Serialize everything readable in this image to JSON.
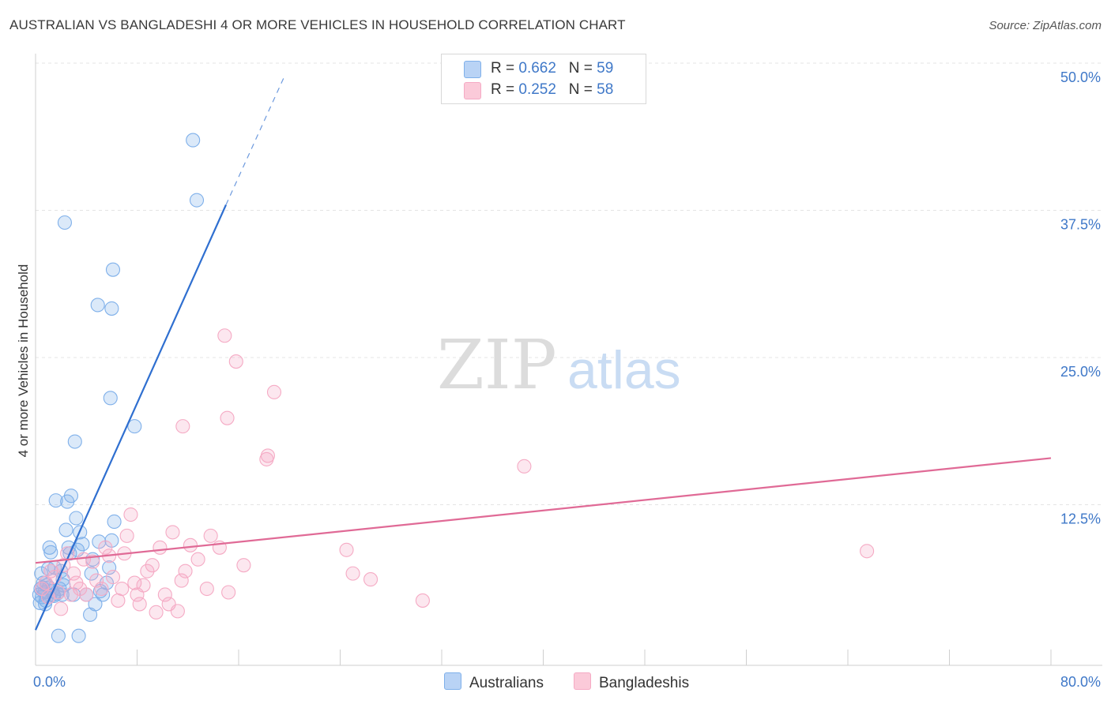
{
  "title": "AUSTRALIAN VS BANGLADESHI 4 OR MORE VEHICLES IN HOUSEHOLD CORRELATION CHART",
  "source": "Source: ZipAtlas.com",
  "watermark": {
    "zip": "ZIP",
    "atlas": "atlas"
  },
  "legend": {
    "rows": [
      {
        "r_label": "R = ",
        "r_value": "0.662",
        "n_label": "N = ",
        "n_value": "59"
      },
      {
        "r_label": "R = ",
        "r_value": "0.252",
        "n_label": "N = ",
        "n_value": "58"
      }
    ]
  },
  "chart_data": {
    "type": "scatter",
    "title": "AUSTRALIAN VS BANGLADESHI 4 OR MORE VEHICLES IN HOUSEHOLD CORRELATION CHART",
    "xlabel": "",
    "ylabel": "4 or more Vehicles in Household",
    "xlim": [
      0,
      80
    ],
    "ylim": [
      0,
      50
    ],
    "x_tick_labels": [
      "0.0%",
      "80.0%"
    ],
    "y_tick_values": [
      12.5,
      25.0,
      37.5,
      50.0
    ],
    "y_tick_labels": [
      "12.5%",
      "25.0%",
      "37.5%",
      "50.0%"
    ],
    "grid": true,
    "legend_position": "top-center",
    "series": [
      {
        "name": "Australians",
        "color": "#7fb0ea",
        "line_color": "#2f6fd0",
        "r": 0.662,
        "n": 59,
        "trend": {
          "x": [
            0.0,
            15.0
          ],
          "y": 3.0,
          "y_end": 39.1,
          "dashed_to": [
            19.6,
            50.0
          ]
        },
        "points": [
          [
            0.3,
            6.0
          ],
          [
            0.4,
            6.5
          ],
          [
            0.5,
            5.8
          ],
          [
            0.6,
            7.0
          ],
          [
            0.7,
            6.2
          ],
          [
            0.8,
            5.5
          ],
          [
            0.9,
            6.8
          ],
          [
            1.0,
            8.2
          ],
          [
            1.1,
            10.0
          ],
          [
            1.2,
            9.6
          ],
          [
            1.3,
            6.3
          ],
          [
            1.4,
            6.0
          ],
          [
            1.5,
            8.3
          ],
          [
            1.6,
            14.0
          ],
          [
            1.7,
            6.1
          ],
          [
            1.8,
            2.5
          ],
          [
            1.9,
            6.5
          ],
          [
            2.0,
            8.0
          ],
          [
            2.1,
            6.0
          ],
          [
            2.2,
            6.8
          ],
          [
            2.4,
            11.5
          ],
          [
            2.5,
            13.9
          ],
          [
            2.6,
            10.0
          ],
          [
            2.7,
            9.5
          ],
          [
            2.8,
            14.4
          ],
          [
            3.0,
            6.0
          ],
          [
            3.1,
            19.0
          ],
          [
            3.2,
            12.5
          ],
          [
            3.3,
            9.8
          ],
          [
            3.4,
            2.5
          ],
          [
            3.5,
            11.3
          ],
          [
            3.7,
            10.3
          ],
          [
            4.0,
            6.0
          ],
          [
            4.3,
            4.3
          ],
          [
            4.4,
            7.8
          ],
          [
            4.5,
            9.0
          ],
          [
            4.7,
            5.2
          ],
          [
            5.0,
            10.5
          ],
          [
            5.1,
            6.3
          ],
          [
            5.3,
            6.0
          ],
          [
            5.6,
            7.0
          ],
          [
            5.8,
            8.3
          ],
          [
            6.0,
            10.6
          ],
          [
            6.2,
            12.2
          ],
          [
            2.3,
            37.6
          ],
          [
            4.9,
            30.6
          ],
          [
            5.9,
            22.7
          ],
          [
            6.0,
            30.3
          ],
          [
            6.1,
            33.6
          ],
          [
            7.8,
            20.3
          ],
          [
            12.4,
            44.6
          ],
          [
            12.7,
            39.5
          ],
          [
            0.35,
            5.3
          ],
          [
            0.45,
            7.8
          ],
          [
            1.05,
            6.6
          ],
          [
            0.55,
            6.6
          ],
          [
            2.15,
            7.3
          ],
          [
            0.75,
            5.2
          ],
          [
            1.45,
            5.9
          ]
        ]
      },
      {
        "name": "Bangladeshis",
        "color": "#f5aac4",
        "line_color": "#e06a96",
        "r": 0.252,
        "n": 58,
        "trend": {
          "x": [
            0.0,
            80.0
          ],
          "y": 8.7,
          "y_end": 17.6
        },
        "points": [
          [
            0.5,
            6.5
          ],
          [
            0.8,
            7.0
          ],
          [
            1.0,
            5.8
          ],
          [
            1.2,
            8.0
          ],
          [
            1.5,
            7.5
          ],
          [
            1.8,
            6.2
          ],
          [
            2.0,
            4.8
          ],
          [
            2.2,
            8.5
          ],
          [
            2.5,
            9.5
          ],
          [
            2.8,
            6.0
          ],
          [
            3.0,
            7.8
          ],
          [
            3.2,
            7.0
          ],
          [
            3.5,
            6.5
          ],
          [
            3.8,
            9.0
          ],
          [
            4.0,
            6.0
          ],
          [
            4.5,
            8.8
          ],
          [
            4.8,
            7.2
          ],
          [
            5.2,
            6.5
          ],
          [
            5.5,
            10.0
          ],
          [
            5.8,
            9.3
          ],
          [
            6.1,
            7.5
          ],
          [
            6.5,
            5.5
          ],
          [
            6.8,
            6.5
          ],
          [
            7.0,
            9.5
          ],
          [
            7.2,
            11.0
          ],
          [
            7.5,
            12.8
          ],
          [
            7.8,
            7.0
          ],
          [
            8.0,
            6.0
          ],
          [
            8.2,
            5.2
          ],
          [
            8.5,
            6.8
          ],
          [
            8.8,
            8.0
          ],
          [
            9.2,
            8.5
          ],
          [
            9.5,
            4.5
          ],
          [
            9.8,
            10.0
          ],
          [
            10.2,
            6.0
          ],
          [
            10.5,
            5.2
          ],
          [
            10.8,
            11.3
          ],
          [
            11.2,
            4.6
          ],
          [
            11.5,
            7.2
          ],
          [
            11.8,
            8.0
          ],
          [
            12.2,
            10.2
          ],
          [
            12.8,
            9.0
          ],
          [
            13.5,
            6.5
          ],
          [
            13.8,
            11.0
          ],
          [
            14.5,
            10.0
          ],
          [
            15.2,
            6.2
          ],
          [
            16.4,
            8.5
          ],
          [
            11.6,
            20.3
          ],
          [
            14.9,
            28.0
          ],
          [
            15.1,
            21.0
          ],
          [
            15.8,
            25.8
          ],
          [
            18.2,
            17.5
          ],
          [
            18.3,
            17.8
          ],
          [
            18.8,
            23.2
          ],
          [
            24.5,
            9.8
          ],
          [
            25.0,
            7.8
          ],
          [
            30.5,
            5.5
          ],
          [
            38.5,
            16.9
          ]
        ]
      }
    ]
  },
  "extra_points_b": [
    [
      26.4,
      7.3
    ],
    [
      65.5,
      9.7
    ]
  ],
  "bottom_legend": [
    "Australians",
    "Bangladeshis"
  ]
}
